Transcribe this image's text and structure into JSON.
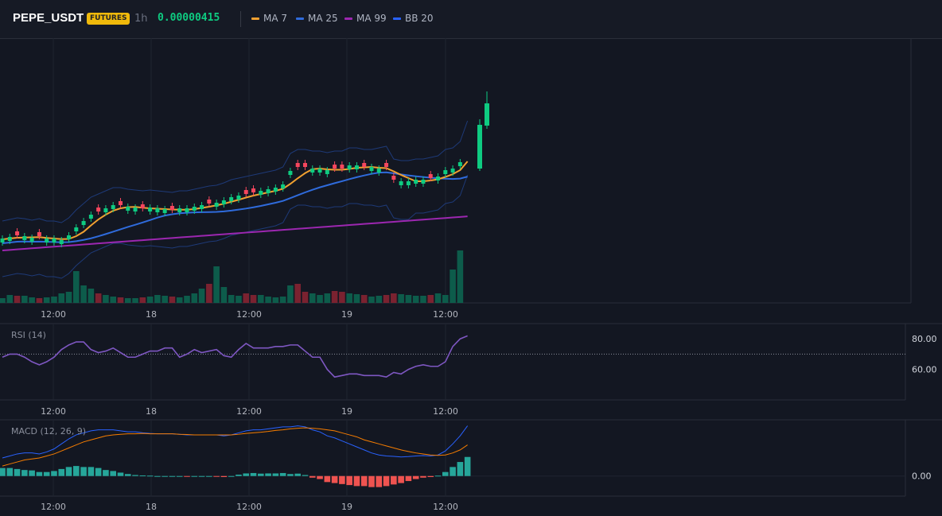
{
  "header": {
    "symbol": "PEPE_USDT",
    "badge": "FUTURES",
    "interval": "1h",
    "last_price": "0.00000415",
    "legend": [
      {
        "label": "MA 7",
        "color": "#f0a030"
      },
      {
        "label": "MA 25",
        "color": "#2f6bdc"
      },
      {
        "label": "MA 99",
        "color": "#9c27b0"
      },
      {
        "label": "BB 20",
        "color": "#2962ff"
      }
    ]
  },
  "colors": {
    "up": "#0ecb81",
    "down": "#f6465d",
    "vol_up": "#0d5c4b",
    "vol_down": "#7a2230",
    "rsi": "#7e57c2",
    "macd": "#2962ff",
    "signal": "#f57c00",
    "hist_up": "#26a69a",
    "hist_down": "#ef5350",
    "grid": "#1f2430",
    "border": "#2a2e39"
  },
  "time_axis": {
    "labels": [
      "12:00",
      "18",
      "12:00",
      "19",
      "12:00"
    ]
  },
  "rsi": {
    "label": "RSI (14)",
    "ticks": [
      "80.00",
      "60.00"
    ],
    "tick_values": [
      80,
      60
    ],
    "range": [
      40,
      90
    ],
    "reference_level": 70,
    "values": [
      68,
      70,
      70,
      68,
      65,
      63,
      65,
      68,
      73,
      76,
      78,
      78,
      73,
      71,
      72,
      74,
      71,
      68,
      68,
      70,
      72,
      72,
      74,
      74,
      68,
      70,
      73,
      71,
      72,
      73,
      69,
      68,
      73,
      77,
      74,
      74,
      74,
      75,
      75,
      76,
      76,
      72,
      68,
      68,
      60,
      55,
      56,
      57,
      57,
      56,
      56,
      56,
      55,
      58,
      57,
      60,
      62,
      63,
      62,
      62,
      65,
      75,
      80,
      82
    ]
  },
  "macd": {
    "label": "MACD (12, 26, 9)",
    "ticks": [
      "0.00"
    ],
    "tick_values": [
      0
    ],
    "range": [
      -1.0,
      2.8
    ],
    "macd": [
      0.9,
      1.0,
      1.1,
      1.15,
      1.15,
      1.1,
      1.2,
      1.35,
      1.6,
      1.85,
      2.05,
      2.15,
      2.25,
      2.3,
      2.3,
      2.3,
      2.25,
      2.2,
      2.2,
      2.15,
      2.12,
      2.1,
      2.1,
      2.1,
      2.08,
      2.05,
      2.05,
      2.05,
      2.05,
      2.05,
      2.0,
      2.05,
      2.15,
      2.25,
      2.3,
      2.3,
      2.35,
      2.4,
      2.45,
      2.45,
      2.5,
      2.45,
      2.3,
      2.2,
      2.0,
      1.9,
      1.75,
      1.6,
      1.45,
      1.3,
      1.15,
      1.05,
      1.0,
      0.98,
      0.95,
      0.97,
      1.0,
      1.02,
      1.0,
      1.05,
      1.25,
      1.6,
      2.0,
      2.5
    ],
    "signal": [
      0.5,
      0.6,
      0.7,
      0.8,
      0.85,
      0.9,
      1.0,
      1.1,
      1.25,
      1.4,
      1.55,
      1.7,
      1.8,
      1.9,
      2.0,
      2.05,
      2.08,
      2.1,
      2.1,
      2.12,
      2.1,
      2.1,
      2.1,
      2.1,
      2.08,
      2.07,
      2.05,
      2.05,
      2.05,
      2.05,
      2.05,
      2.05,
      2.08,
      2.12,
      2.15,
      2.18,
      2.22,
      2.27,
      2.3,
      2.35,
      2.38,
      2.4,
      2.38,
      2.35,
      2.3,
      2.25,
      2.15,
      2.05,
      1.95,
      1.8,
      1.7,
      1.6,
      1.5,
      1.4,
      1.3,
      1.22,
      1.15,
      1.1,
      1.05,
      1.03,
      1.05,
      1.15,
      1.3,
      1.55
    ],
    "hist": [
      0.4,
      0.4,
      0.35,
      0.3,
      0.28,
      0.2,
      0.2,
      0.25,
      0.35,
      0.45,
      0.5,
      0.45,
      0.45,
      0.4,
      0.3,
      0.25,
      0.17,
      0.1,
      0.05,
      0.03,
      0.02,
      0.0,
      0.0,
      0.0,
      0.0,
      -0.02,
      0.0,
      0.0,
      0.0,
      -0.02,
      -0.05,
      0.0,
      0.07,
      0.13,
      0.15,
      0.12,
      0.13,
      0.13,
      0.15,
      0.1,
      0.12,
      0.05,
      -0.08,
      -0.15,
      -0.3,
      -0.35,
      -0.4,
      -0.45,
      -0.5,
      -0.5,
      -0.55,
      -0.55,
      -0.5,
      -0.42,
      -0.35,
      -0.25,
      -0.15,
      -0.08,
      -0.05,
      0.02,
      0.2,
      0.45,
      0.7,
      0.95
    ]
  }
}
